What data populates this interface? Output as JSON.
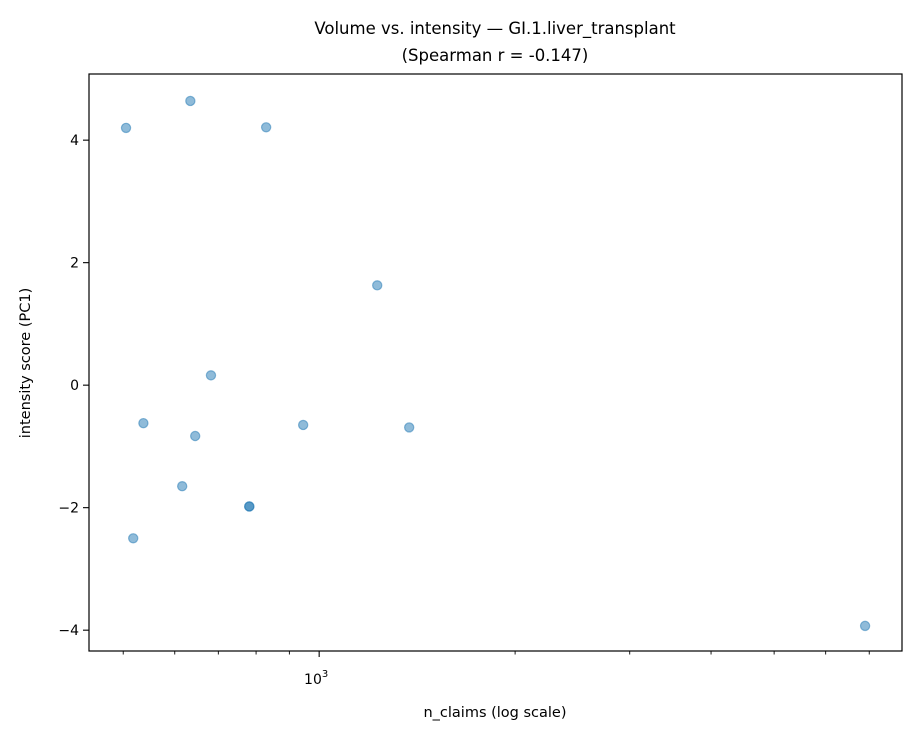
{
  "chart_data": {
    "type": "scatter",
    "title": "Volume vs. intensity — GI.1.liver_transplant",
    "subtitle": "(Spearman r = -0.147)",
    "xlabel": "n_claims (log scale)",
    "ylabel": "intensity score (PC1)",
    "xscale": "log",
    "xlim": [
      443,
      7860
    ],
    "ylim": [
      -4.34,
      5.08
    ],
    "x_major_ticks": [
      {
        "value": 1000,
        "label_base": "10",
        "label_exp": "3"
      }
    ],
    "x_minor_ticks": [
      500,
      600,
      700,
      800,
      900,
      2000,
      3000,
      4000,
      5000,
      6000,
      7000
    ],
    "y_ticks": [
      -4,
      -2,
      0,
      2,
      4
    ],
    "y_tick_labels": [
      "−4",
      "−2",
      "0",
      "2",
      "4"
    ],
    "grid": false,
    "marker_color": "#1f77b4",
    "marker_alpha": 0.5,
    "points": [
      {
        "x": 505,
        "y": 4.2
      },
      {
        "x": 634,
        "y": 4.64
      },
      {
        "x": 829,
        "y": 4.21
      },
      {
        "x": 1228,
        "y": 1.63
      },
      {
        "x": 682,
        "y": 0.16
      },
      {
        "x": 537,
        "y": -0.62
      },
      {
        "x": 645,
        "y": -0.83
      },
      {
        "x": 945,
        "y": -0.65
      },
      {
        "x": 1375,
        "y": -0.69
      },
      {
        "x": 616,
        "y": -1.65
      },
      {
        "x": 781,
        "y": -1.98
      },
      {
        "x": 781,
        "y": -1.98
      },
      {
        "x": 518,
        "y": -2.5
      },
      {
        "x": 6898,
        "y": -3.93
      }
    ]
  }
}
